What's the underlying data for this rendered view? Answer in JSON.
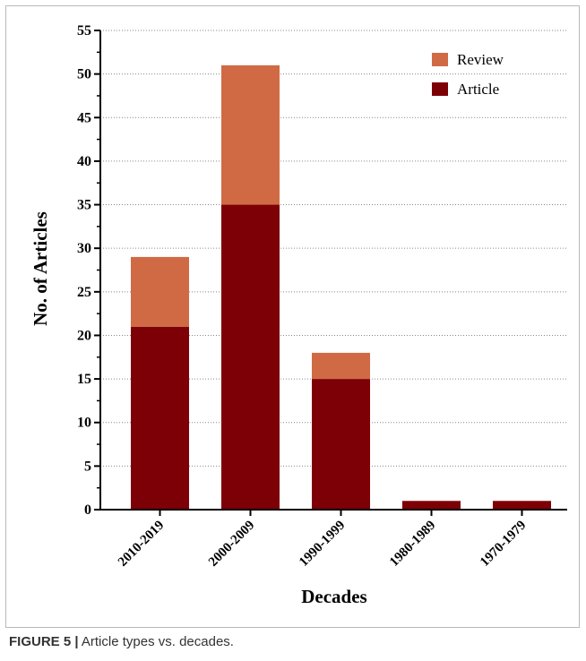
{
  "chart_data": {
    "type": "bar",
    "stacked": true,
    "categories": [
      "2010-2019",
      "2000-2009",
      "1990-1999",
      "1980-1989",
      "1970-1979"
    ],
    "series": [
      {
        "name": "Article",
        "values": [
          21,
          35,
          15,
          1,
          1
        ],
        "color": "#7d0006"
      },
      {
        "name": "Review",
        "values": [
          8,
          16,
          3,
          0,
          0
        ],
        "color": "#d06a45"
      }
    ],
    "legend_order": [
      "Review",
      "Article"
    ],
    "xlabel": "Decades",
    "ylabel": "No. of Articles",
    "ylim": [
      0,
      55
    ],
    "yticks": [
      0,
      5,
      10,
      15,
      20,
      25,
      30,
      35,
      40,
      45,
      50,
      55
    ],
    "grid": "horizontal dotted",
    "legend_position": "top-right"
  },
  "caption": {
    "label": "FIGURE 5 |",
    "text": "Article types vs. decades."
  }
}
